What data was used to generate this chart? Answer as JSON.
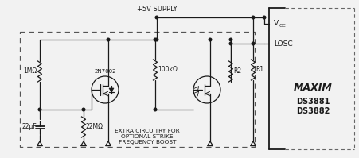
{
  "bg_color": "#f2f2f2",
  "line_color": "#1a1a1a",
  "dashed_color": "#555555",
  "figsize": [
    4.51,
    1.99
  ],
  "dpi": 100,
  "maxim_text": "AXIM",
  "maxim_m1": "M",
  "maxim_m2": "M",
  "ds_text1": "DS3881",
  "ds_text2": "DS3882",
  "vcc_text": "V",
  "vcc_sub": "CC",
  "losc_text": "LOSC",
  "supply_text": "+5V SUPPLY",
  "r1_text": "R1",
  "r2_text": "R2",
  "r100k_text": "100kΩ",
  "r1m_text": "1MΩ",
  "r22m_text": "22MΩ",
  "cap_text": "22μF",
  "trans_text": "2N7002",
  "extra_text": "EXTRA CIRCUITRY FOR\nOPTIONAL STRIKE\nFREQUENCY BOOST"
}
